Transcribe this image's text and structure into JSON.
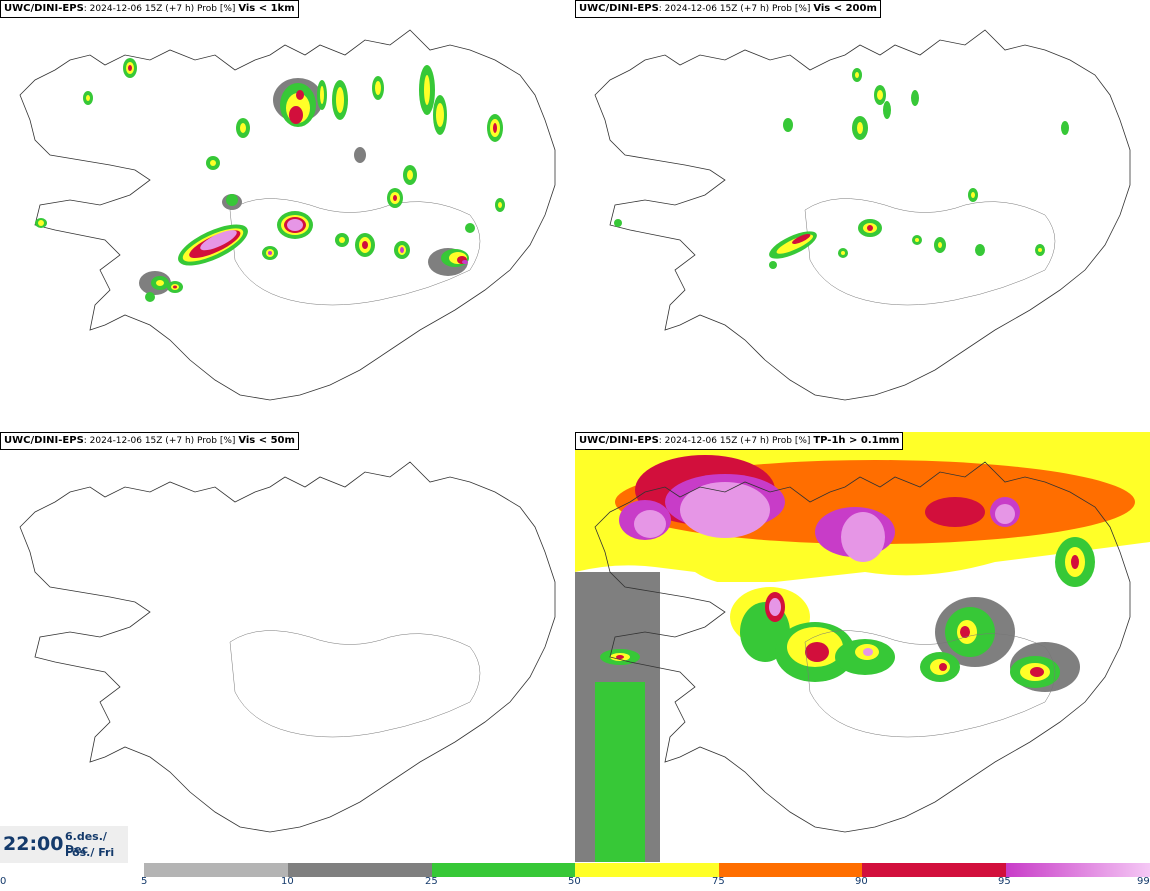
{
  "panels": [
    {
      "source": "UWC/DINI-EPS",
      "run": ": 2024-12-06 15Z (+7 h) Prob [%] ",
      "threshold": "Vis < 1km"
    },
    {
      "source": "UWC/DINI-EPS",
      "run": ": 2024-12-06 15Z (+7 h) Prob [%] ",
      "threshold": "Vis < 200m"
    },
    {
      "source": "UWC/DINI-EPS",
      "run": ": 2024-12-06 15Z (+7 h) Prob [%] ",
      "threshold": "Vis < 50m"
    },
    {
      "source": "UWC/DINI-EPS",
      "run": ": 2024-12-06 15Z (+7 h) Prob [%] ",
      "threshold": "TP-1h > 0.1mm"
    }
  ],
  "valid_time": {
    "time": "22:00",
    "date_line1": "6.des./ Dec",
    "date_line2": "Fös./ Fri"
  },
  "legend": {
    "ticks": [
      "0",
      "5",
      "10",
      "25",
      "50",
      "75",
      "90",
      "95",
      "99"
    ],
    "colors": {
      "5-10": "#b4b4b4",
      "10-25": "#7f7f7f",
      "25-50": "#37c837",
      "50-75": "#ffff28",
      "75-90": "#ff6e00",
      "90-95": "#d20f3c",
      "95-99": "#c83cc8"
    }
  }
}
